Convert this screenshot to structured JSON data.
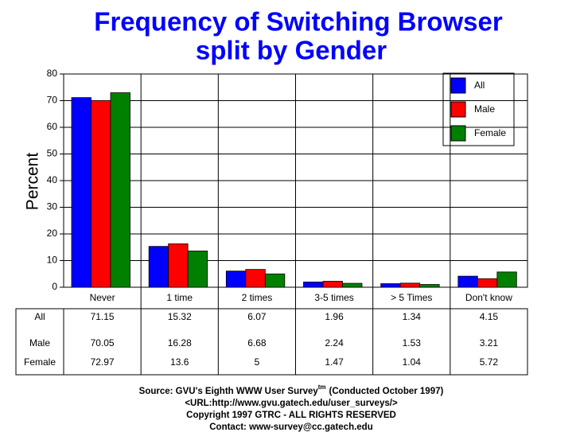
{
  "chart_data": {
    "type": "bar",
    "title": [
      "Frequency of Switching Browser",
      "split by Gender"
    ],
    "y_label": "Percent",
    "categories": [
      "Never",
      "1 time",
      "2 times",
      "3-5 times",
      "> 5 Times",
      "Don't know"
    ],
    "series": [
      {
        "name": "All",
        "color": "#0000ff",
        "values": [
          71.15,
          15.32,
          6.07,
          1.96,
          1.34,
          4.15
        ]
      },
      {
        "name": "Male",
        "color": "#ff0000",
        "values": [
          70.05,
          16.28,
          6.68,
          2.24,
          1.53,
          3.21
        ]
      },
      {
        "name": "Female",
        "color": "#008000",
        "values": [
          72.97,
          13.6,
          5,
          1.47,
          1.04,
          5.72
        ]
      }
    ],
    "ylim": [
      0,
      80
    ],
    "yticks": [
      0,
      10,
      20,
      30,
      40,
      50,
      60,
      70,
      80
    ],
    "grid": true,
    "legend": "top-right",
    "notes": {
      "source": "Source: GVU's Eighth WWW User Survey",
      "source_tm": "tm",
      "source_note": "(Conducted October 1997)",
      "url": "<URL:http://www.gvu.gatech.edu/user_surveys/>",
      "copyright": "Copyright 1997 GTRC - ALL RIGHTS RESERVED",
      "contact": "Contact: www-survey@cc.gatech.edu"
    }
  }
}
